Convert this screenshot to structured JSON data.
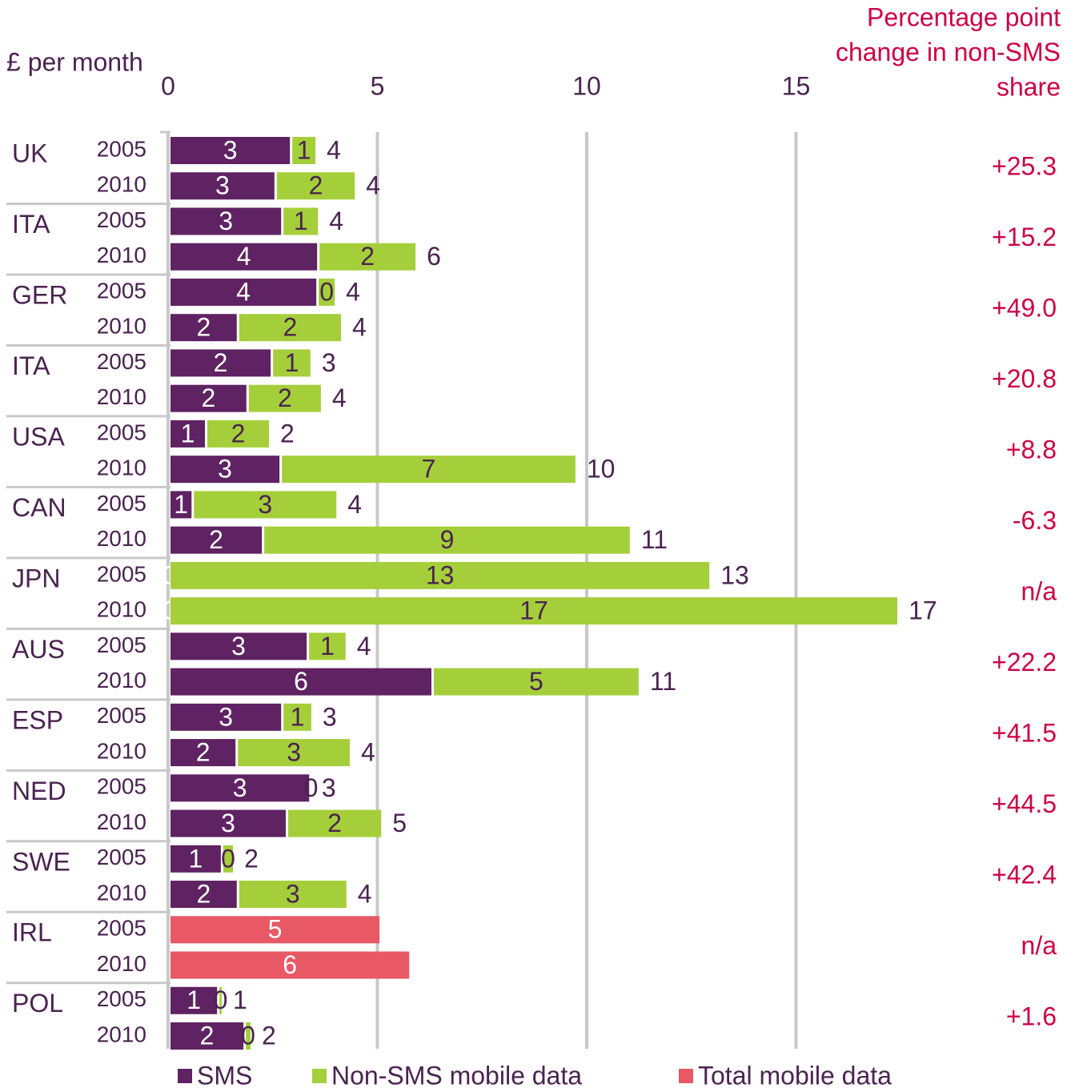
{
  "chart_data": {
    "type": "bar",
    "orientation": "horizontal",
    "stacked": true,
    "x_label": "£ per month",
    "right_title": [
      "Percentage point",
      "change in non-SMS",
      "share"
    ],
    "groups": [
      "UK",
      "ITA",
      "GER",
      "ITA",
      "USA",
      "CAN",
      "JPN",
      "AUS",
      "ESP",
      "NED",
      "SWE",
      "IRL",
      "POL"
    ],
    "group_change": [
      "+25.3",
      "+15.2",
      "+49.0",
      "+20.8",
      "+8.8",
      "-6.3",
      "n/a",
      "+22.2",
      "+41.5",
      "+44.5",
      "+42.4",
      "n/a",
      "+1.6"
    ],
    "categories": [
      "2005",
      "2010",
      "2005",
      "2010",
      "2005",
      "2010",
      "2005",
      "2010",
      "2005",
      "2010",
      "2005",
      "2010",
      "2005",
      "2010",
      "2005",
      "2010",
      "2005",
      "2010",
      "2005",
      "2010",
      "2005",
      "2010",
      "2005",
      "2010",
      "2005",
      "2010"
    ],
    "series": [
      {
        "name": "SMS",
        "color": "#5f2262",
        "values": [
          2.91,
          2.54,
          2.7,
          3.56,
          3.54,
          1.64,
          2.45,
          1.87,
          0.88,
          2.66,
          0.56,
          2.24,
          0,
          0,
          3.31,
          6.29,
          2.7,
          1.61,
          3.37,
          2.81,
          1.26,
          1.64,
          null,
          null,
          1.17,
          1.8
        ],
        "value_labels": [
          "3",
          "3",
          "3",
          "4",
          "4",
          "2",
          "2",
          "2",
          "1",
          "3",
          "1",
          "2",
          "0",
          "0",
          "3",
          "6",
          "3",
          "2",
          "3",
          "3",
          "1",
          "2",
          null,
          null,
          "1",
          "2"
        ]
      },
      {
        "name": "Non-SMS mobile data",
        "color": "#a5cf3a",
        "values": [
          0.61,
          1.92,
          0.88,
          2.35,
          0.44,
          2.49,
          0.95,
          1.78,
          1.53,
          7.07,
          3.46,
          8.79,
          12.93,
          17.42,
          0.93,
          4.95,
          0.72,
          2.73,
          0.03,
          2.28,
          0.29,
          2.62,
          null,
          null,
          0.11,
          0.17
        ],
        "value_labels": [
          "1",
          "2",
          "1",
          "2",
          "0",
          "2",
          "1",
          "2",
          "2",
          "7",
          "3",
          "9",
          "13",
          "17",
          "1",
          "5",
          "1",
          "3",
          "0",
          "2",
          "0",
          "3",
          null,
          null,
          "0",
          "0"
        ]
      },
      {
        "name": "Total mobile data",
        "color": "#e85865",
        "values": [
          null,
          null,
          null,
          null,
          null,
          null,
          null,
          null,
          null,
          null,
          null,
          null,
          null,
          null,
          null,
          null,
          null,
          null,
          null,
          null,
          null,
          null,
          5.05,
          5.76,
          null,
          null
        ],
        "value_labels": [
          null,
          null,
          null,
          null,
          null,
          null,
          null,
          null,
          null,
          null,
          null,
          null,
          null,
          null,
          null,
          null,
          null,
          null,
          null,
          null,
          null,
          null,
          "5",
          "6",
          null,
          null
        ]
      }
    ],
    "totals": {
      "values": [
        3.52,
        4.46,
        3.58,
        5.91,
        3.98,
        4.13,
        3.4,
        3.65,
        2.41,
        9.73,
        4.02,
        11.03,
        12.93,
        17.42,
        4.24,
        11.24,
        3.42,
        4.34,
        3.4,
        5.09,
        1.55,
        4.26,
        null,
        null,
        1.28,
        1.97
      ],
      "value_labels": [
        "4",
        "4",
        "4",
        "6",
        "4",
        "4",
        "3",
        "4",
        "2",
        "10",
        "4",
        "11",
        "13",
        "17",
        "4",
        "11",
        "3",
        "4",
        "3",
        "5",
        "2",
        "4",
        null,
        null,
        "1",
        "2"
      ]
    },
    "xlim": [
      0,
      20
    ],
    "xticks": [
      0,
      5,
      10,
      15
    ],
    "grid": true
  }
}
